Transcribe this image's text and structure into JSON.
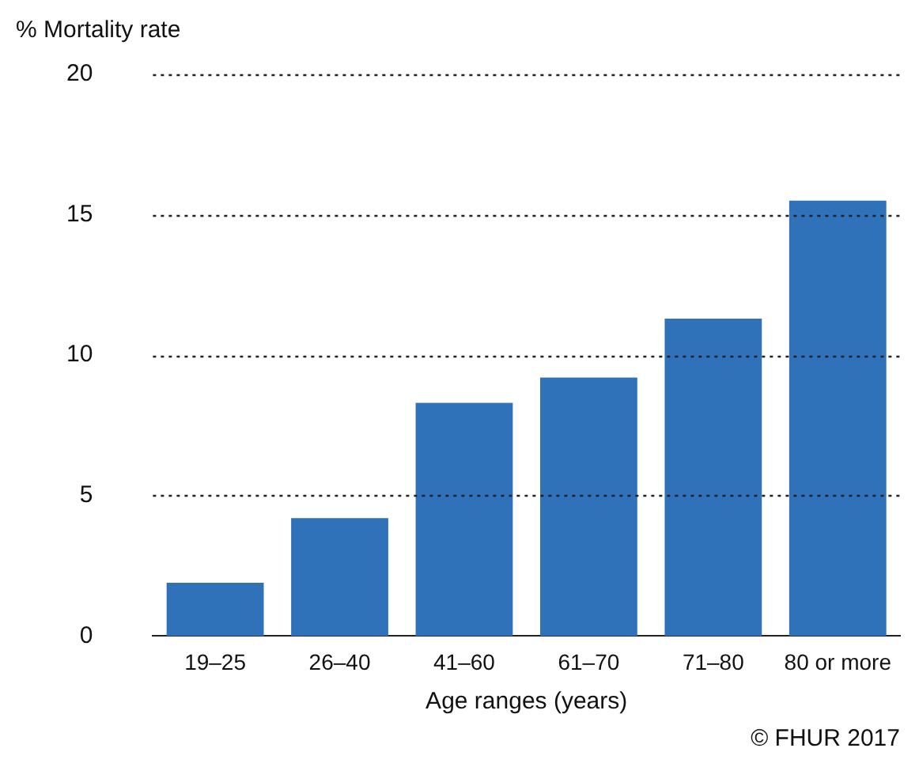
{
  "chart_data": {
    "type": "bar",
    "ylabel": "% Mortality rate",
    "xlabel": "Age ranges (years)",
    "categories": [
      "19–25",
      "26–40",
      "41–60",
      "61–70",
      "71–80",
      "80 or more"
    ],
    "values": [
      1.9,
      4.2,
      8.3,
      9.2,
      11.3,
      15.5
    ],
    "color": "#2f72b9",
    "ylim": [
      0,
      20
    ],
    "yticks": [
      0,
      5,
      10,
      15,
      20
    ],
    "grid": "y",
    "legend": false,
    "annotations": [
      "© FHUR 2017"
    ]
  }
}
